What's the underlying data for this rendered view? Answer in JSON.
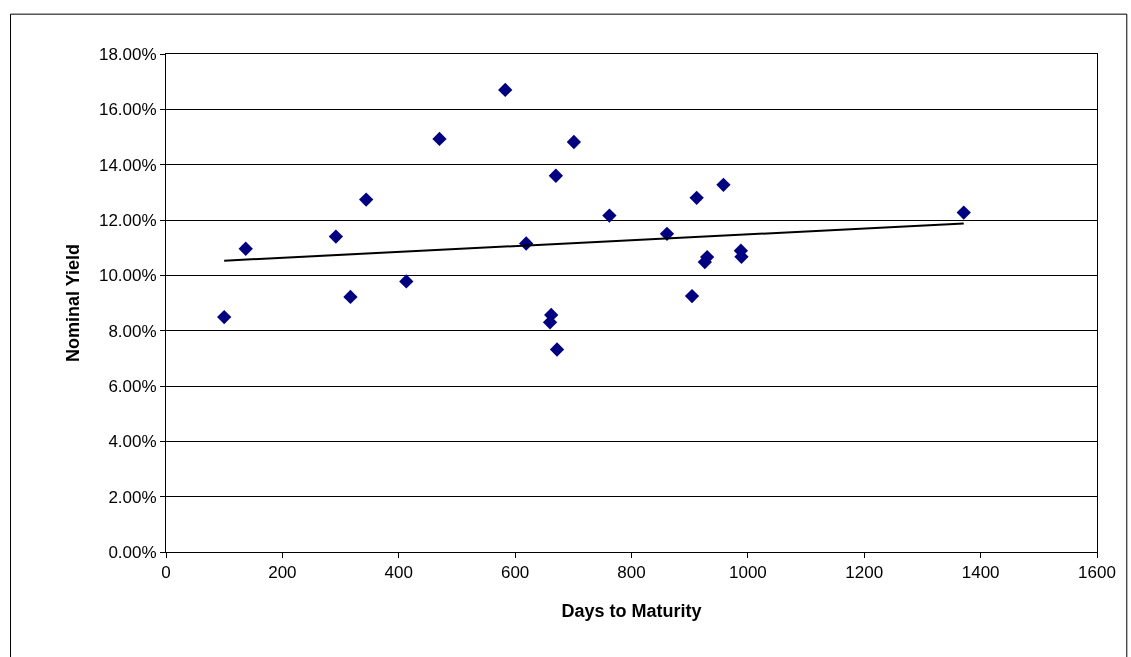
{
  "chart_data": {
    "type": "scatter",
    "xlabel": "Days to Maturity",
    "ylabel": "Nominal Yield",
    "xlim": [
      0,
      1600
    ],
    "xticks": [
      0,
      200,
      400,
      600,
      800,
      1000,
      1200,
      1400,
      1600
    ],
    "ylim": [
      0,
      18
    ],
    "yticks": [
      {
        "value": 0,
        "label": "0.00%"
      },
      {
        "value": 2,
        "label": "2.00%"
      },
      {
        "value": 4,
        "label": "4.00%"
      },
      {
        "value": 6,
        "label": "6.00%"
      },
      {
        "value": 8,
        "label": "8.00%"
      },
      {
        "value": 10,
        "label": "10.00%"
      },
      {
        "value": 12,
        "label": "12.00%"
      },
      {
        "value": 14,
        "label": "14.00%"
      },
      {
        "value": 16,
        "label": "16.00%"
      },
      {
        "value": 18,
        "label": "18.00%"
      }
    ],
    "grid": "y",
    "legend": false,
    "marker": "diamond",
    "series": [
      {
        "color": "#000080",
        "x": [
          100,
          137,
          292,
          317,
          344,
          413,
          470,
          583,
          619,
          662,
          660,
          672,
          670,
          701,
          762,
          861,
          904,
          912,
          930,
          926,
          958,
          988,
          989,
          1371
        ],
        "values": [
          8.49,
          10.96,
          11.4,
          9.22,
          12.74,
          9.78,
          14.93,
          16.7,
          11.15,
          8.57,
          8.3,
          7.32,
          13.6,
          14.82,
          12.16,
          11.5,
          9.25,
          12.8,
          10.66,
          10.48,
          13.27,
          10.89,
          10.67,
          12.27
        ]
      },
      {
        "type": "line",
        "color": "#000000",
        "marker": "none",
        "line_style": "solid",
        "x": [
          100,
          1371
        ],
        "values": [
          10.53,
          11.87
        ]
      }
    ]
  }
}
